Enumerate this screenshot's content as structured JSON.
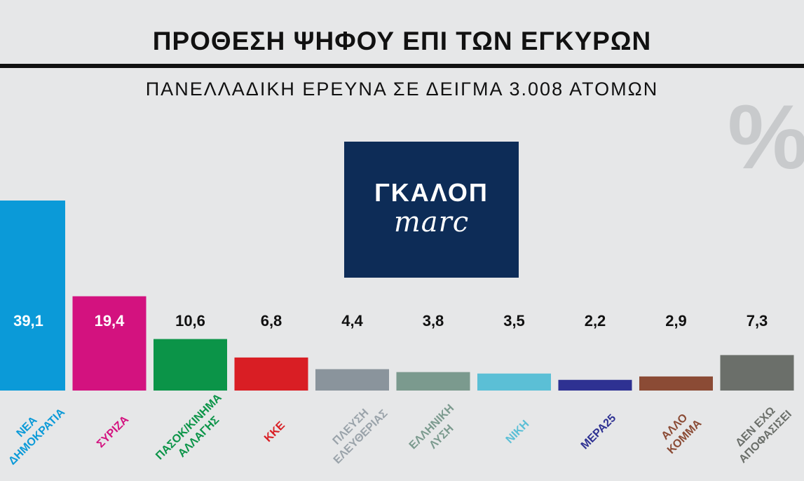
{
  "header": {
    "title": "ΠΡΟΘΕΣΗ ΨΗΦΟΥ ΕΠΙ ΤΩΝ ΕΓΚΥΡΩΝ",
    "subtitle": "ΠΑΝΕΛΛΑΔΙΚΗ ΕΡΕΥΝΑ ΣΕ ΔΕΙΓΜΑ 3.008 ΑΤΟΜΩΝ",
    "unit_symbol": "%"
  },
  "logo": {
    "line1": "ΓΚΑΛΟΠ",
    "line2": "marc",
    "bg": "#0d2c57"
  },
  "chart_data": {
    "type": "bar",
    "title": "ΠΡΟΘΕΣΗ ΨΗΦΟΥ ΕΠΙ ΤΩΝ ΕΓΚΥΡΩΝ",
    "subtitle": "ΠΑΝΕΛΛΑΔΙΚΗ ΕΡΕΥΝΑ ΣΕ ΔΕΙΓΜΑ 3.008 ΑΤΟΜΩΝ",
    "xlabel": "",
    "ylabel": "",
    "ylim": [
      0,
      40
    ],
    "grid": false,
    "legend": "none",
    "categories": [
      [
        "ΝΕΑ",
        "ΔΗΜΟΚΡΑΤΙΑ"
      ],
      [
        "ΣΥΡΙΖΑ"
      ],
      [
        "ΠΑΣΟΚ/ΚΙΝΗΜΑ",
        "ΑΛΛΑΓΗΣ"
      ],
      [
        "ΚΚΕ"
      ],
      [
        "ΠΛΕΥΣΗ",
        "ΕΛΕΥΘΕΡΙΑΣ"
      ],
      [
        "ΕΛΛΗΝΙΚΗ",
        "ΛΥΣΗ"
      ],
      [
        "ΝΙΚΗ"
      ],
      [
        "ΜΕΡΑ25"
      ],
      [
        "ΑΛΛΟ",
        "ΚΟΜΜΑ"
      ],
      [
        "ΔΕΝ ΕΧΩ",
        "ΑΠΟΦΑΣΙΣΕΙ"
      ]
    ],
    "values": [
      39.1,
      19.4,
      10.6,
      6.8,
      4.4,
      3.8,
      3.5,
      2.2,
      2.9,
      7.3
    ],
    "value_labels": [
      "39,1",
      "19,4",
      "10,6",
      "6,8",
      "4,4",
      "3,8",
      "3,5",
      "2,2",
      "2,9",
      "7,3"
    ],
    "colors": [
      "#0b9ad8",
      "#d3127f",
      "#0b9448",
      "#d91e24",
      "#8a949c",
      "#7b9a8e",
      "#5bbfd6",
      "#2e3192",
      "#8b4b35",
      "#6b6f6a"
    ],
    "label_colors": [
      "#0b9ad8",
      "#d3127f",
      "#0b9448",
      "#d91e24",
      "#9aa3aa",
      "#7b9a8e",
      "#5bbfd6",
      "#2e3192",
      "#8b4b35",
      "#6b6f6a"
    ]
  }
}
